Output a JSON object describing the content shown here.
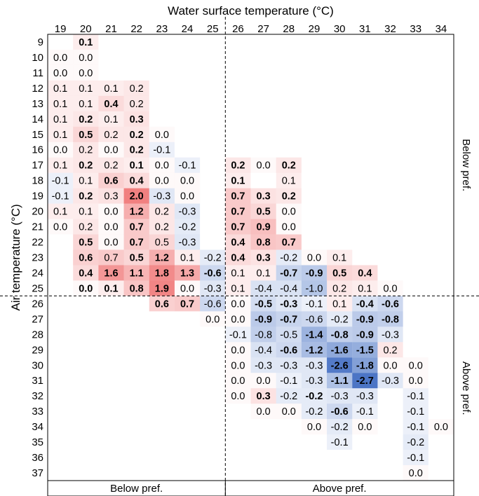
{
  "chart_data": {
    "type": "heatmap",
    "title": "",
    "xlabel": "Water surface temperature (°C)",
    "ylabel": "Air temperature (°C)",
    "x": [
      19,
      20,
      21,
      22,
      23,
      24,
      25,
      26,
      27,
      28,
      29,
      30,
      31,
      32,
      33,
      34
    ],
    "y": [
      9,
      10,
      11,
      12,
      13,
      14,
      15,
      16,
      17,
      18,
      19,
      20,
      21,
      22,
      23,
      24,
      25,
      26,
      27,
      28,
      29,
      30,
      31,
      32,
      33,
      34,
      35,
      36,
      37
    ],
    "x_threshold": 25.5,
    "y_threshold": 25.5,
    "bottom_labels": [
      "Below pref.",
      "Above pref."
    ],
    "right_labels": [
      "Below pref.",
      "Above pref."
    ],
    "colors": {
      "positive": "#e83030",
      "negative": "#2255b8",
      "line": "#000000"
    },
    "cells": [
      {
        "air": 9,
        "water": 20,
        "v": "0.1",
        "b": true
      },
      {
        "air": 10,
        "water": 19,
        "v": "0.0",
        "b": false
      },
      {
        "air": 10,
        "water": 20,
        "v": "0.0",
        "b": false
      },
      {
        "air": 11,
        "water": 19,
        "v": "0.0",
        "b": false
      },
      {
        "air": 11,
        "water": 20,
        "v": "0.0",
        "b": false
      },
      {
        "air": 12,
        "water": 19,
        "v": "0.1",
        "b": false
      },
      {
        "air": 12,
        "water": 20,
        "v": "0.1",
        "b": false
      },
      {
        "air": 12,
        "water": 21,
        "v": "0.1",
        "b": false
      },
      {
        "air": 12,
        "water": 22,
        "v": "0.2",
        "b": false
      },
      {
        "air": 13,
        "water": 19,
        "v": "0.1",
        "b": false
      },
      {
        "air": 13,
        "water": 20,
        "v": "0.1",
        "b": false
      },
      {
        "air": 13,
        "water": 21,
        "v": "0.4",
        "b": true
      },
      {
        "air": 13,
        "water": 22,
        "v": "0.2",
        "b": false
      },
      {
        "air": 14,
        "water": 19,
        "v": "0.1",
        "b": false
      },
      {
        "air": 14,
        "water": 20,
        "v": "0.2",
        "b": true
      },
      {
        "air": 14,
        "water": 21,
        "v": "0.1",
        "b": false
      },
      {
        "air": 14,
        "water": 22,
        "v": "0.3",
        "b": true
      },
      {
        "air": 15,
        "water": 19,
        "v": "0.1",
        "b": false
      },
      {
        "air": 15,
        "water": 20,
        "v": "0.5",
        "b": true
      },
      {
        "air": 15,
        "water": 21,
        "v": "0.2",
        "b": false
      },
      {
        "air": 15,
        "water": 22,
        "v": "0.2",
        "b": true
      },
      {
        "air": 15,
        "water": 23,
        "v": "0.0",
        "b": false
      },
      {
        "air": 16,
        "water": 19,
        "v": "0.0",
        "b": false
      },
      {
        "air": 16,
        "water": 20,
        "v": "0.2",
        "b": false
      },
      {
        "air": 16,
        "water": 21,
        "v": "0.0",
        "b": false
      },
      {
        "air": 16,
        "water": 22,
        "v": "0.2",
        "b": true
      },
      {
        "air": 16,
        "water": 23,
        "v": "-0.1",
        "b": false
      },
      {
        "air": 17,
        "water": 19,
        "v": "0.1",
        "b": false
      },
      {
        "air": 17,
        "water": 20,
        "v": "0.2",
        "b": true
      },
      {
        "air": 17,
        "water": 21,
        "v": "0.2",
        "b": false
      },
      {
        "air": 17,
        "water": 22,
        "v": "0.1",
        "b": true
      },
      {
        "air": 17,
        "water": 23,
        "v": "0.0",
        "b": false
      },
      {
        "air": 17,
        "water": 24,
        "v": "-0.1",
        "b": false
      },
      {
        "air": 17,
        "water": 26,
        "v": "0.2",
        "b": true
      },
      {
        "air": 17,
        "water": 27,
        "v": "0.0",
        "b": false
      },
      {
        "air": 17,
        "water": 28,
        "v": "0.2",
        "b": true
      },
      {
        "air": 18,
        "water": 19,
        "v": "-0.1",
        "b": false
      },
      {
        "air": 18,
        "water": 20,
        "v": "0.1",
        "b": false
      },
      {
        "air": 18,
        "water": 21,
        "v": "0.6",
        "b": true
      },
      {
        "air": 18,
        "water": 22,
        "v": "0.4",
        "b": true
      },
      {
        "air": 18,
        "water": 23,
        "v": "0.0",
        "b": false
      },
      {
        "air": 18,
        "water": 24,
        "v": "0.0",
        "b": false
      },
      {
        "air": 18,
        "water": 26,
        "v": "0.1",
        "b": true
      },
      {
        "air": 18,
        "water": 28,
        "v": "0.1",
        "b": false
      },
      {
        "air": 19,
        "water": 19,
        "v": "-0.1",
        "b": false
      },
      {
        "air": 19,
        "water": 20,
        "v": "0.2",
        "b": true
      },
      {
        "air": 19,
        "water": 21,
        "v": "0.3",
        "b": false
      },
      {
        "air": 19,
        "water": 22,
        "v": "2.0",
        "b": true
      },
      {
        "air": 19,
        "water": 23,
        "v": "-0.3",
        "b": false
      },
      {
        "air": 19,
        "water": 24,
        "v": "0.0",
        "b": false
      },
      {
        "air": 19,
        "water": 26,
        "v": "0.7",
        "b": true
      },
      {
        "air": 19,
        "water": 27,
        "v": "0.3",
        "b": true
      },
      {
        "air": 19,
        "water": 28,
        "v": "0.2",
        "b": true
      },
      {
        "air": 20,
        "water": 19,
        "v": "0.1",
        "b": false
      },
      {
        "air": 20,
        "water": 20,
        "v": "0.1",
        "b": false
      },
      {
        "air": 20,
        "water": 21,
        "v": "0.0",
        "b": false
      },
      {
        "air": 20,
        "water": 22,
        "v": "1.2",
        "b": true
      },
      {
        "air": 20,
        "water": 23,
        "v": "0.2",
        "b": false
      },
      {
        "air": 20,
        "water": 24,
        "v": "-0.3",
        "b": false
      },
      {
        "air": 20,
        "water": 26,
        "v": "0.7",
        "b": true
      },
      {
        "air": 20,
        "water": 27,
        "v": "0.5",
        "b": true
      },
      {
        "air": 20,
        "water": 28,
        "v": "0.0",
        "b": false
      },
      {
        "air": 21,
        "water": 19,
        "v": "0.0",
        "b": false
      },
      {
        "air": 21,
        "water": 20,
        "v": "0.2",
        "b": false
      },
      {
        "air": 21,
        "water": 21,
        "v": "0.0",
        "b": false
      },
      {
        "air": 21,
        "water": 22,
        "v": "0.7",
        "b": true
      },
      {
        "air": 21,
        "water": 23,
        "v": "0.2",
        "b": false
      },
      {
        "air": 21,
        "water": 24,
        "v": "-0.2",
        "b": false
      },
      {
        "air": 21,
        "water": 26,
        "v": "0.7",
        "b": true
      },
      {
        "air": 21,
        "water": 27,
        "v": "0.9",
        "b": true
      },
      {
        "air": 21,
        "water": 28,
        "v": "0.0",
        "b": false
      },
      {
        "air": 22,
        "water": 20,
        "v": "0.5",
        "b": true
      },
      {
        "air": 22,
        "water": 21,
        "v": "0.0",
        "b": false
      },
      {
        "air": 22,
        "water": 22,
        "v": "0.7",
        "b": true
      },
      {
        "air": 22,
        "water": 23,
        "v": "0.5",
        "b": false
      },
      {
        "air": 22,
        "water": 24,
        "v": "-0.3",
        "b": false
      },
      {
        "air": 22,
        "water": 26,
        "v": "0.4",
        "b": true
      },
      {
        "air": 22,
        "water": 27,
        "v": "0.8",
        "b": true
      },
      {
        "air": 22,
        "water": 28,
        "v": "0.7",
        "b": true
      },
      {
        "air": 23,
        "water": 20,
        "v": "0.6",
        "b": true
      },
      {
        "air": 23,
        "water": 21,
        "v": "0.7",
        "b": false
      },
      {
        "air": 23,
        "water": 22,
        "v": "0.5",
        "b": true
      },
      {
        "air": 23,
        "water": 23,
        "v": "1.2",
        "b": true
      },
      {
        "air": 23,
        "water": 24,
        "v": "0.1",
        "b": false
      },
      {
        "air": 23,
        "water": 25,
        "v": "-0.2",
        "b": false
      },
      {
        "air": 23,
        "water": 26,
        "v": "0.4",
        "b": true
      },
      {
        "air": 23,
        "water": 27,
        "v": "0.3",
        "b": true
      },
      {
        "air": 23,
        "water": 28,
        "v": "-0.2",
        "b": false
      },
      {
        "air": 23,
        "water": 29,
        "v": "0.0",
        "b": false
      },
      {
        "air": 23,
        "water": 30,
        "v": "0.1",
        "b": false
      },
      {
        "air": 24,
        "water": 20,
        "v": "0.4",
        "b": true
      },
      {
        "air": 24,
        "water": 21,
        "v": "1.6",
        "b": true
      },
      {
        "air": 24,
        "water": 22,
        "v": "1.1",
        "b": true
      },
      {
        "air": 24,
        "water": 23,
        "v": "1.8",
        "b": true
      },
      {
        "air": 24,
        "water": 24,
        "v": "1.3",
        "b": true
      },
      {
        "air": 24,
        "water": 25,
        "v": "-0.6",
        "b": true
      },
      {
        "air": 24,
        "water": 26,
        "v": "0.1",
        "b": false
      },
      {
        "air": 24,
        "water": 27,
        "v": "0.1",
        "b": false
      },
      {
        "air": 24,
        "water": 28,
        "v": "-0.7",
        "b": true
      },
      {
        "air": 24,
        "water": 29,
        "v": "-0.9",
        "b": true
      },
      {
        "air": 24,
        "water": 30,
        "v": "0.5",
        "b": true
      },
      {
        "air": 24,
        "water": 31,
        "v": "0.4",
        "b": true
      },
      {
        "air": 25,
        "water": 20,
        "v": "0.0",
        "b": true
      },
      {
        "air": 25,
        "water": 21,
        "v": "0.1",
        "b": true
      },
      {
        "air": 25,
        "water": 22,
        "v": "0.8",
        "b": true
      },
      {
        "air": 25,
        "water": 23,
        "v": "1.9",
        "b": true
      },
      {
        "air": 25,
        "water": 24,
        "v": "0.0",
        "b": false
      },
      {
        "air": 25,
        "water": 25,
        "v": "-0.3",
        "b": false
      },
      {
        "air": 25,
        "water": 26,
        "v": "0.1",
        "b": false
      },
      {
        "air": 25,
        "water": 27,
        "v": "-0.4",
        "b": false
      },
      {
        "air": 25,
        "water": 28,
        "v": "-0.4",
        "b": false
      },
      {
        "air": 25,
        "water": 29,
        "v": "-1.0",
        "b": false
      },
      {
        "air": 25,
        "water": 30,
        "v": "0.2",
        "b": false
      },
      {
        "air": 25,
        "water": 31,
        "v": "0.1",
        "b": false
      },
      {
        "air": 25,
        "water": 32,
        "v": "0.0",
        "b": false
      },
      {
        "air": 26,
        "water": 23,
        "v": "0.6",
        "b": true
      },
      {
        "air": 26,
        "water": 24,
        "v": "0.7",
        "b": true
      },
      {
        "air": 26,
        "water": 25,
        "v": "-0.6",
        "b": false
      },
      {
        "air": 26,
        "water": 26,
        "v": "0.0",
        "b": false
      },
      {
        "air": 26,
        "water": 27,
        "v": "-0.5",
        "b": true
      },
      {
        "air": 26,
        "water": 28,
        "v": "-0.3",
        "b": true
      },
      {
        "air": 26,
        "water": 29,
        "v": "-0.1",
        "b": false
      },
      {
        "air": 26,
        "water": 30,
        "v": "0.1",
        "b": false
      },
      {
        "air": 26,
        "water": 31,
        "v": "-0.4",
        "b": true
      },
      {
        "air": 26,
        "water": 32,
        "v": "-0.6",
        "b": true
      },
      {
        "air": 27,
        "water": 25,
        "v": "0.0",
        "b": false
      },
      {
        "air": 27,
        "water": 26,
        "v": "0.0",
        "b": false
      },
      {
        "air": 27,
        "water": 27,
        "v": "-0.9",
        "b": true
      },
      {
        "air": 27,
        "water": 28,
        "v": "-0.7",
        "b": true
      },
      {
        "air": 27,
        "water": 29,
        "v": "-0.6",
        "b": false
      },
      {
        "air": 27,
        "water": 30,
        "v": "-0.2",
        "b": false
      },
      {
        "air": 27,
        "water": 31,
        "v": "-0.9",
        "b": true
      },
      {
        "air": 27,
        "water": 32,
        "v": "-0.8",
        "b": true
      },
      {
        "air": 28,
        "water": 26,
        "v": "-0.1",
        "b": false
      },
      {
        "air": 28,
        "water": 27,
        "v": "-0.8",
        "b": false
      },
      {
        "air": 28,
        "water": 28,
        "v": "-0.5",
        "b": false
      },
      {
        "air": 28,
        "water": 29,
        "v": "-1.4",
        "b": true
      },
      {
        "air": 28,
        "water": 30,
        "v": "-0.8",
        "b": true
      },
      {
        "air": 28,
        "water": 31,
        "v": "-0.9",
        "b": true
      },
      {
        "air": 28,
        "water": 32,
        "v": "-0.3",
        "b": false
      },
      {
        "air": 29,
        "water": 26,
        "v": "0.0",
        "b": false
      },
      {
        "air": 29,
        "water": 27,
        "v": "-0.4",
        "b": false
      },
      {
        "air": 29,
        "water": 28,
        "v": "-0.6",
        "b": true
      },
      {
        "air": 29,
        "water": 29,
        "v": "-1.2",
        "b": true
      },
      {
        "air": 29,
        "water": 30,
        "v": "-1.6",
        "b": true
      },
      {
        "air": 29,
        "water": 31,
        "v": "-1.5",
        "b": true
      },
      {
        "air": 29,
        "water": 32,
        "v": "0.2",
        "b": false
      },
      {
        "air": 30,
        "water": 26,
        "v": "0.0",
        "b": false
      },
      {
        "air": 30,
        "water": 27,
        "v": "-0.3",
        "b": false
      },
      {
        "air": 30,
        "water": 28,
        "v": "-0.3",
        "b": false
      },
      {
        "air": 30,
        "water": 29,
        "v": "-0.3",
        "b": false
      },
      {
        "air": 30,
        "water": 30,
        "v": "-2.6",
        "b": true
      },
      {
        "air": 30,
        "water": 31,
        "v": "-1.8",
        "b": true
      },
      {
        "air": 30,
        "water": 32,
        "v": "0.0",
        "b": false
      },
      {
        "air": 30,
        "water": 33,
        "v": "0.0",
        "b": false
      },
      {
        "air": 31,
        "water": 26,
        "v": "0.0",
        "b": false
      },
      {
        "air": 31,
        "water": 27,
        "v": "0.0",
        "b": false
      },
      {
        "air": 31,
        "water": 28,
        "v": "-0.1",
        "b": false
      },
      {
        "air": 31,
        "water": 29,
        "v": "-0.3",
        "b": false
      },
      {
        "air": 31,
        "water": 30,
        "v": "-1.1",
        "b": true
      },
      {
        "air": 31,
        "water": 31,
        "v": "-2.7",
        "b": true
      },
      {
        "air": 31,
        "water": 32,
        "v": "-0.3",
        "b": false
      },
      {
        "air": 31,
        "water": 33,
        "v": "0.0",
        "b": false
      },
      {
        "air": 32,
        "water": 26,
        "v": "0.0",
        "b": false
      },
      {
        "air": 32,
        "water": 27,
        "v": "0.3",
        "b": true
      },
      {
        "air": 32,
        "water": 28,
        "v": "-0.2",
        "b": false
      },
      {
        "air": 32,
        "water": 29,
        "v": "-0.2",
        "b": true
      },
      {
        "air": 32,
        "water": 30,
        "v": "-0.3",
        "b": false
      },
      {
        "air": 32,
        "water": 31,
        "v": "-0.3",
        "b": false
      },
      {
        "air": 32,
        "water": 33,
        "v": "-0.1",
        "b": false
      },
      {
        "air": 33,
        "water": 27,
        "v": "0.0",
        "b": false
      },
      {
        "air": 33,
        "water": 28,
        "v": "0.0",
        "b": false
      },
      {
        "air": 33,
        "water": 29,
        "v": "-0.2",
        "b": false
      },
      {
        "air": 33,
        "water": 30,
        "v": "-0.6",
        "b": true
      },
      {
        "air": 33,
        "water": 31,
        "v": "-0.1",
        "b": false
      },
      {
        "air": 33,
        "water": 33,
        "v": "-0.1",
        "b": false
      },
      {
        "air": 34,
        "water": 29,
        "v": "0.0",
        "b": false
      },
      {
        "air": 34,
        "water": 30,
        "v": "-0.2",
        "b": false
      },
      {
        "air": 34,
        "water": 31,
        "v": "0.0",
        "b": false
      },
      {
        "air": 34,
        "water": 33,
        "v": "-0.1",
        "b": false
      },
      {
        "air": 34,
        "water": 34,
        "v": "0.0",
        "b": false
      },
      {
        "air": 35,
        "water": 30,
        "v": "-0.1",
        "b": false
      },
      {
        "air": 35,
        "water": 33,
        "v": "-0.2",
        "b": false
      },
      {
        "air": 36,
        "water": 33,
        "v": "-0.1",
        "b": false
      },
      {
        "air": 37,
        "water": 33,
        "v": "0.0",
        "b": false
      }
    ]
  }
}
